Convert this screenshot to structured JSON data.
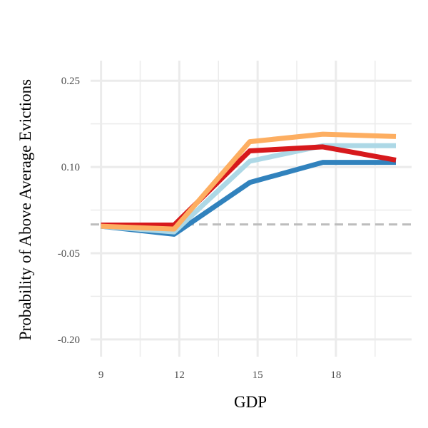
{
  "chart_data": {
    "type": "line",
    "title": "",
    "xlabel": "GDP",
    "ylabel": "Probability of Above Average Evictions",
    "x_ticks": [
      9,
      12,
      15,
      18
    ],
    "x_tick_labels": [
      "9",
      "12",
      "15",
      "18"
    ],
    "y_ticks": [
      0.25,
      0.1,
      -0.05,
      -0.2
    ],
    "y_tick_labels": [
      "0.25",
      "0.10",
      "-0.05",
      "-0.20"
    ],
    "xlim": [
      8.6,
      20.9
    ],
    "ylim": [
      -0.23,
      0.285
    ],
    "reference_line": {
      "y": 0,
      "style": "dashed",
      "color": "#bdbdbd"
    },
    "grid": true,
    "legend": "none",
    "series": [
      {
        "color": "#3182bd",
        "x": [
          9,
          11.8,
          14.7,
          17.5,
          20.3
        ],
        "values": [
          -0.003,
          -0.017,
          0.073,
          0.108,
          0.108
        ]
      },
      {
        "color": "#add8e6",
        "x": [
          9,
          11.8,
          14.7,
          17.5,
          20.3
        ],
        "values": [
          -0.003,
          -0.013,
          0.11,
          0.137,
          0.137
        ]
      },
      {
        "color": "#d7191c",
        "x": [
          9,
          11.8,
          14.7,
          17.5,
          20.3
        ],
        "values": [
          -0.001,
          -0.001,
          0.128,
          0.135,
          0.112
        ]
      },
      {
        "color": "#fdae61",
        "x": [
          9,
          11.8,
          14.7,
          17.5,
          20.3
        ],
        "values": [
          -0.003,
          -0.008,
          0.144,
          0.157,
          0.153
        ]
      }
    ]
  }
}
